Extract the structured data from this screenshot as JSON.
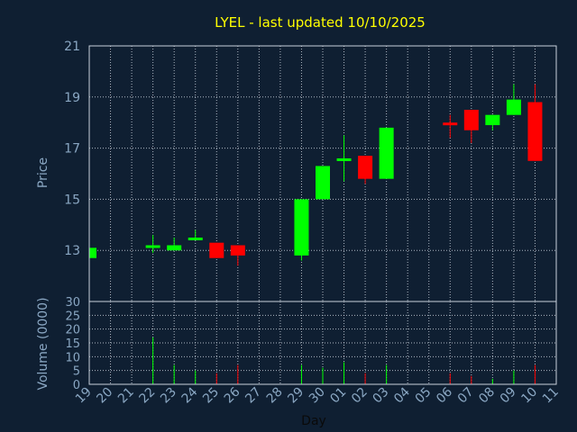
{
  "chart_data": {
    "type": "candlestick",
    "title": "LYEL - last updated 10/10/2025",
    "xlabel": "Day",
    "price_panel": {
      "ylabel": "Price",
      "ylim": [
        11,
        21
      ],
      "yticks": [
        13,
        15,
        17,
        19,
        21
      ]
    },
    "volume_panel": {
      "ylabel": "Volume (0000)",
      "ylim": [
        0,
        30
      ],
      "yticks": [
        0,
        5,
        10,
        15,
        20,
        25,
        30
      ]
    },
    "x_ticks": [
      "19",
      "20",
      "21",
      "22",
      "23",
      "24",
      "25",
      "26",
      "27",
      "28",
      "29",
      "30",
      "01",
      "02",
      "03",
      "04",
      "05",
      "06",
      "07",
      "08",
      "09",
      "10",
      "11"
    ],
    "colors": {
      "up": "#00ff00",
      "down": "#ff0000",
      "background": "#0f1f32",
      "title": "#ffff00",
      "axis_text": "#8aa7c3"
    },
    "candles": [
      {
        "day": "19",
        "open": 12.7,
        "close": 13.1,
        "high": 13.1,
        "low": 12.7,
        "volume": 0
      },
      {
        "day": "22",
        "open": 13.1,
        "close": 13.2,
        "high": 13.6,
        "low": 12.9,
        "volume": 17
      },
      {
        "day": "23",
        "open": 13.0,
        "close": 13.2,
        "high": 13.5,
        "low": 13.0,
        "volume": 7
      },
      {
        "day": "24",
        "open": 13.4,
        "close": 13.5,
        "high": 13.8,
        "low": 13.4,
        "volume": 5
      },
      {
        "day": "25",
        "open": 13.3,
        "close": 12.7,
        "high": 13.3,
        "low": 12.7,
        "volume": 4
      },
      {
        "day": "26",
        "open": 13.2,
        "close": 12.8,
        "high": 13.2,
        "low": 12.4,
        "volume": 7
      },
      {
        "day": "29",
        "open": 12.8,
        "close": 15.0,
        "high": 15.0,
        "low": 12.6,
        "volume": 7
      },
      {
        "day": "30",
        "open": 15.0,
        "close": 16.3,
        "high": 16.3,
        "low": 15.0,
        "volume": 6
      },
      {
        "day": "01",
        "open": 16.5,
        "close": 16.6,
        "high": 17.5,
        "low": 15.7,
        "volume": 8
      },
      {
        "day": "02",
        "open": 16.7,
        "close": 15.8,
        "high": 16.7,
        "low": 15.6,
        "volume": 4
      },
      {
        "day": "03",
        "open": 15.8,
        "close": 17.8,
        "high": 17.8,
        "low": 15.8,
        "volume": 7
      },
      {
        "day": "06",
        "open": 18.0,
        "close": 17.9,
        "high": 18.3,
        "low": 17.4,
        "volume": 4
      },
      {
        "day": "07",
        "open": 18.5,
        "close": 17.7,
        "high": 18.5,
        "low": 17.2,
        "volume": 3
      },
      {
        "day": "08",
        "open": 17.9,
        "close": 18.3,
        "high": 18.3,
        "low": 17.7,
        "volume": 2
      },
      {
        "day": "09",
        "open": 18.3,
        "close": 18.9,
        "high": 19.5,
        "low": 18.3,
        "volume": 5
      },
      {
        "day": "10",
        "open": 18.8,
        "close": 16.5,
        "high": 19.5,
        "low": 16.5,
        "volume": 7
      }
    ]
  }
}
